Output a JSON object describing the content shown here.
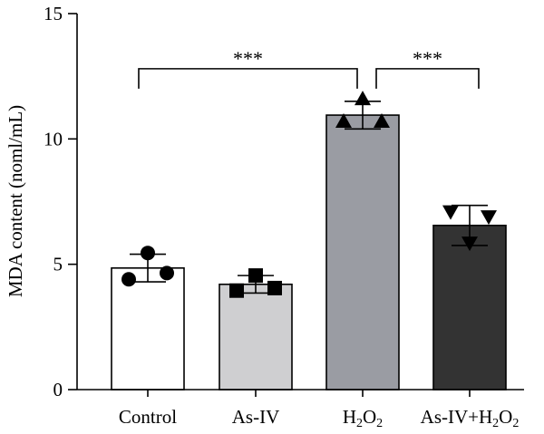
{
  "chart_data": {
    "type": "bar",
    "ylabel": "MDA content (noml/mL)",
    "xlabel": "",
    "ylim": [
      0,
      15
    ],
    "yticks": [
      0,
      5,
      10,
      15
    ],
    "grid": false,
    "categories": [
      {
        "name": "Control",
        "parts": [
          {
            "t": "Control"
          }
        ]
      },
      {
        "name": "As-IV",
        "parts": [
          {
            "t": "As-IV"
          }
        ]
      },
      {
        "name": "H2O2",
        "parts": [
          {
            "t": "H"
          },
          {
            "t": "2",
            "sub": true
          },
          {
            "t": "O"
          },
          {
            "t": "2",
            "sub": true
          }
        ]
      },
      {
        "name": "As-IV+H2O2",
        "parts": [
          {
            "t": "As-IV+H"
          },
          {
            "t": "2",
            "sub": true
          },
          {
            "t": "O"
          },
          {
            "t": "2",
            "sub": true
          }
        ]
      }
    ],
    "values": [
      4.85,
      4.2,
      10.95,
      6.55
    ],
    "sd": [
      0.55,
      0.35,
      0.55,
      0.8
    ],
    "colors": [
      "#ffffff",
      "#cfcfd1",
      "#9a9ca3",
      "#333333"
    ],
    "markers": [
      "circle",
      "square",
      "triangle-up",
      "triangle-down"
    ],
    "points": [
      [
        4.4,
        5.45,
        4.65
      ],
      [
        3.95,
        4.55,
        4.05
      ],
      [
        10.7,
        11.6,
        10.7
      ],
      [
        7.1,
        5.85,
        6.9
      ]
    ],
    "significance": [
      {
        "from": 0,
        "to": 2,
        "label": "***",
        "y": 12.8
      },
      {
        "from": 2,
        "to": 3,
        "label": "***",
        "y": 12.8
      }
    ]
  }
}
